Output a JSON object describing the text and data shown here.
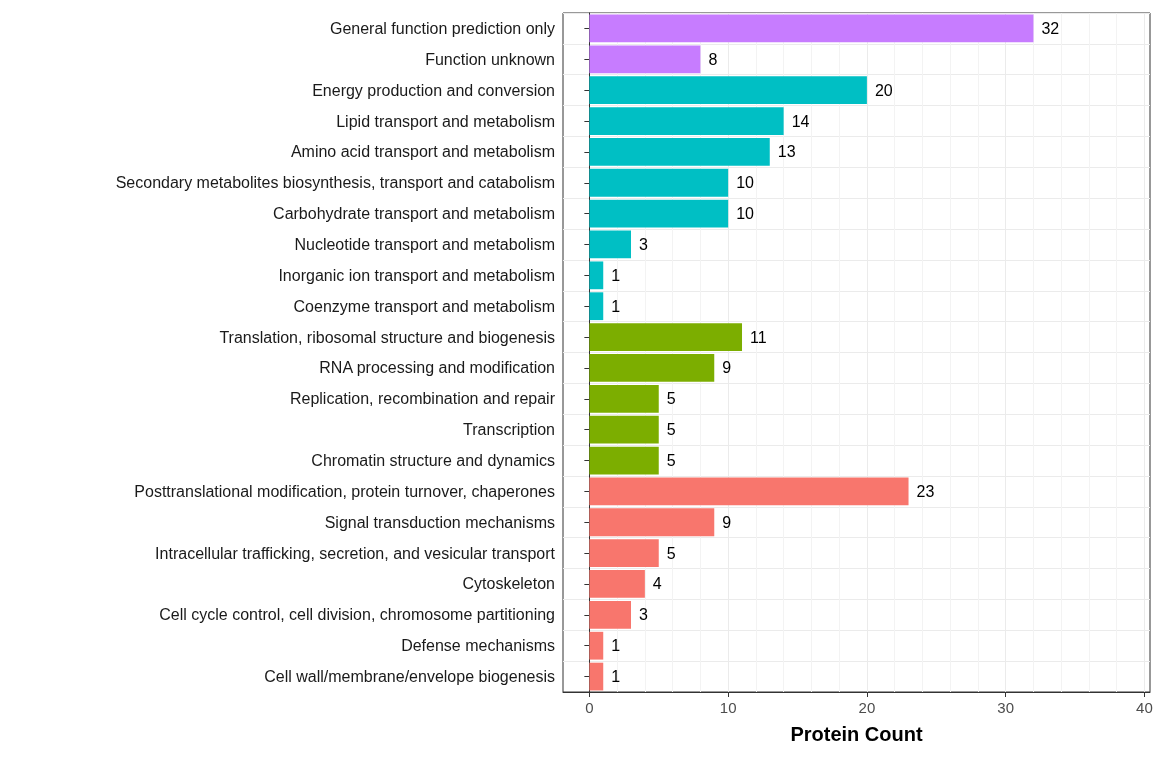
{
  "chart_data": {
    "type": "bar",
    "orientation": "horizontal",
    "xlabel": "Protein Count",
    "categories": [
      "General function prediction only",
      "Function unknown",
      "Energy production and conversion",
      "Lipid transport and metabolism",
      "Amino acid transport and metabolism",
      "Secondary metabolites biosynthesis, transport and catabolism",
      "Carbohydrate transport and metabolism",
      "Nucleotide transport and metabolism",
      "Inorganic ion transport and metabolism",
      "Coenzyme transport and metabolism",
      "Translation, ribosomal structure and biogenesis",
      "RNA processing and modification",
      "Replication, recombination and repair",
      "Transcription",
      "Chromatin structure and dynamics",
      "Posttranslational modification, protein turnover, chaperones",
      "Signal transduction mechanisms",
      "Intracellular trafficking, secretion, and vesicular transport",
      "Cytoskeleton",
      "Cell cycle control, cell division, chromosome partitioning",
      "Defense mechanisms",
      "Cell wall/membrane/envelope biogenesis"
    ],
    "values": [
      32,
      8,
      20,
      14,
      13,
      10,
      10,
      3,
      1,
      1,
      11,
      9,
      5,
      5,
      5,
      23,
      9,
      5,
      4,
      3,
      1,
      1
    ],
    "colors": [
      "#c77cff",
      "#c77cff",
      "#00bfc4",
      "#00bfc4",
      "#00bfc4",
      "#00bfc4",
      "#00bfc4",
      "#00bfc4",
      "#00bfc4",
      "#00bfc4",
      "#7cae00",
      "#7cae00",
      "#7cae00",
      "#7cae00",
      "#7cae00",
      "#f8766d",
      "#f8766d",
      "#f8766d",
      "#f8766d",
      "#f8766d",
      "#f8766d",
      "#f8766d"
    ],
    "xlim": [
      -1.9,
      40.4
    ],
    "xticks": [
      0,
      10,
      20,
      30,
      40
    ],
    "grid": true,
    "data_labels": true
  }
}
